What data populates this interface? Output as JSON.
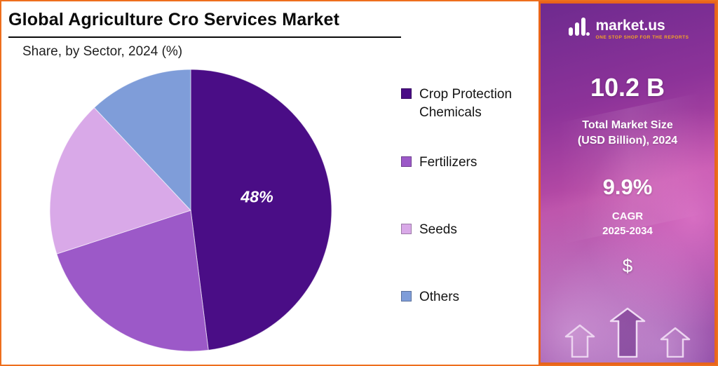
{
  "header": {
    "title": "Global Agriculture Cro Services Market",
    "subtitle": "Share, by Sector, 2024 (%)"
  },
  "chart_data": {
    "type": "pie",
    "title": "Global Agriculture Cro Services Market",
    "subtitle": "Share, by Sector, 2024 (%)",
    "categories": [
      "Crop Protection Chemicals",
      "Fertilizers",
      "Seeds",
      "Others"
    ],
    "values": [
      48,
      22,
      18,
      12
    ],
    "colors": [
      "#4a0d86",
      "#9c59c8",
      "#d9a9e8",
      "#7f9dd9"
    ],
    "slice_labels": [
      "48%",
      "",
      "",
      ""
    ],
    "start_angle_deg": 0,
    "direction": "clockwise",
    "legend_position": "right",
    "unit": "%"
  },
  "sidebar": {
    "brand": {
      "name": "market.us",
      "tagline": "ONE STOP SHOP FOR THE REPORTS"
    },
    "stats": [
      {
        "value": "10.2 B",
        "label_line1": "Total Market Size",
        "label_line2": "(USD Billion), 2024"
      },
      {
        "value": "9.9%",
        "label_line1": "CAGR",
        "label_line2": "2025-2034"
      }
    ],
    "dollar_symbol": "$"
  }
}
